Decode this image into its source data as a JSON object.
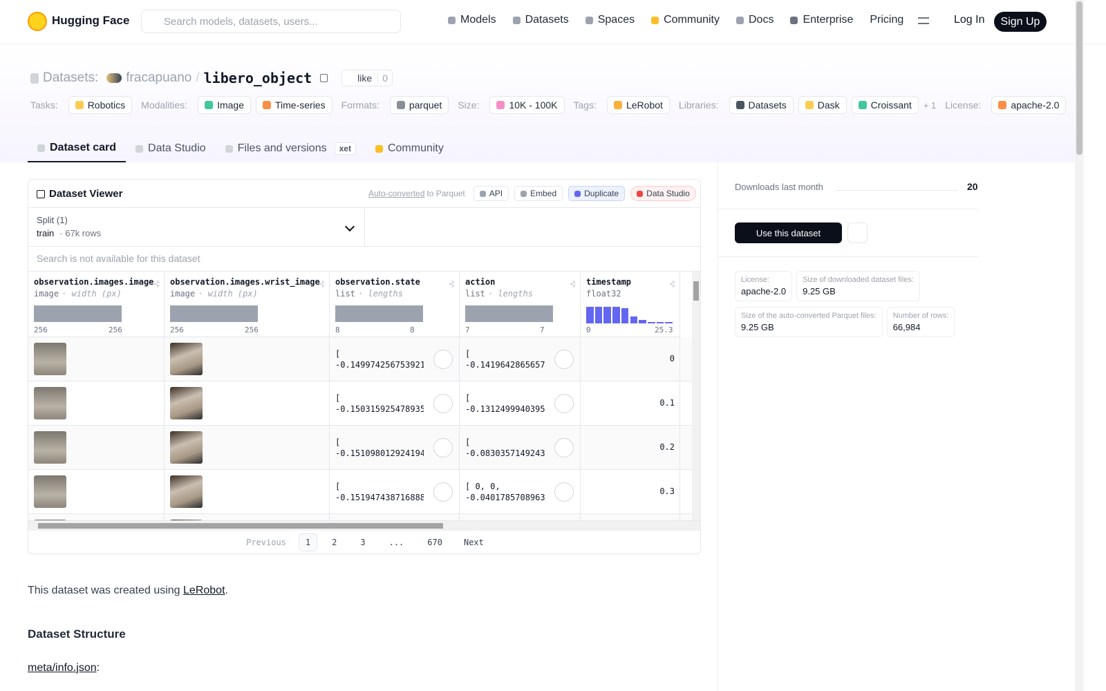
{
  "nav": {
    "brand": "Hugging Face",
    "search_placeholder": "Search models, datasets, users...",
    "links": [
      "Models",
      "Datasets",
      "Spaces",
      "Community",
      "Docs",
      "Enterprise",
      "Pricing"
    ],
    "login": "Log In",
    "signup": "Sign Up"
  },
  "header": {
    "section": "Datasets:",
    "owner": "fracapuano",
    "sep": "/",
    "name": "libero_object",
    "like": "like",
    "likes": "0"
  },
  "tags": [
    {
      "label": "Tasks:",
      "items": [
        "Robotics"
      ]
    },
    {
      "label": "Modalities:",
      "items": [
        "Image",
        "Time-series"
      ]
    },
    {
      "label": "Formats:",
      "items": [
        "parquet"
      ]
    },
    {
      "label": "Size:",
      "items": [
        "10K - 100K"
      ]
    },
    {
      "label": "Tags:",
      "items": [
        "LeRobot"
      ]
    },
    {
      "label": "Libraries:",
      "items": [
        "Datasets",
        "Dask",
        "Croissant"
      ],
      "more": "+ 1"
    },
    {
      "label": "License:",
      "items": [
        "apache-2.0"
      ]
    }
  ],
  "tabs": [
    "Dataset card",
    "Data Studio",
    "Files and versions",
    "Community"
  ],
  "xet": "xet",
  "viewer": {
    "title": "Dataset Viewer",
    "auto": "Auto-converted",
    "to": "to Parquet",
    "buttons": [
      "API",
      "Embed",
      "Duplicate",
      "Data Studio"
    ],
    "split_label": "Split (1)",
    "split": "train",
    "rows_count": "· 67k rows",
    "search": "Search is not available for this dataset",
    "columns": [
      {
        "name": "observation.images.image",
        "type": "image",
        "sub": "· width (px)",
        "min": "256",
        "max": "256"
      },
      {
        "name": "observation.images.wrist_image",
        "type": "image",
        "sub": "· width (px)",
        "min": "256",
        "max": "256"
      },
      {
        "name": "observation.state",
        "type": "list",
        "sub": "· lengths",
        "min": "8",
        "max": "8"
      },
      {
        "name": "action",
        "type": "list",
        "sub": "· lengths",
        "min": "7",
        "max": "7"
      },
      {
        "name": "timestamp",
        "type": "float32",
        "min": "0",
        "max": "25.3",
        "hist": [
          10,
          10,
          10,
          10,
          9,
          4,
          2,
          1,
          1,
          1
        ]
      }
    ],
    "rows": [
      {
        "state": [
          "[",
          "-0.149974256753921…"
        ],
        "action": [
          "[",
          "-0.1419642865657…"
        ],
        "timestamp": 0
      },
      {
        "state": [
          "[",
          "-0.150315925478935…"
        ],
        "action": [
          "[",
          "-0.1312499940395…"
        ],
        "timestamp": 0.1
      },
      {
        "state": [
          "[",
          "-0.151098012924194…"
        ],
        "action": [
          "[",
          "-0.0830357149243…"
        ],
        "timestamp": 0.2
      },
      {
        "state": [
          "[",
          "-0.151947438716888…"
        ],
        "action": [
          "[ 0, 0,",
          "-0.0401785708963…"
        ],
        "timestamp": 0.3
      }
    ],
    "pagination": {
      "prev": "Previous",
      "pages": [
        "1",
        "2",
        "3",
        "...",
        "670"
      ],
      "next": "Next"
    }
  },
  "card": {
    "intro": "This dataset was created using ",
    "link": "LeRobot",
    "end": ".",
    "heading": "Dataset Structure",
    "file": "meta/info.json",
    "colon": ":"
  },
  "sidebar": {
    "downloads_label": "Downloads last month",
    "downloads": "20",
    "use": "Use this dataset",
    "stats": [
      [
        {
          "label": "License:",
          "value": "apache-2.0"
        },
        {
          "label": "Size of downloaded dataset files:",
          "value": "9.25 GB"
        }
      ],
      [
        {
          "label": "Size of the auto-converted Parquet files:",
          "value": "9.25 GB"
        },
        {
          "label": "Number of rows:",
          "value": "66,984"
        }
      ]
    ]
  }
}
